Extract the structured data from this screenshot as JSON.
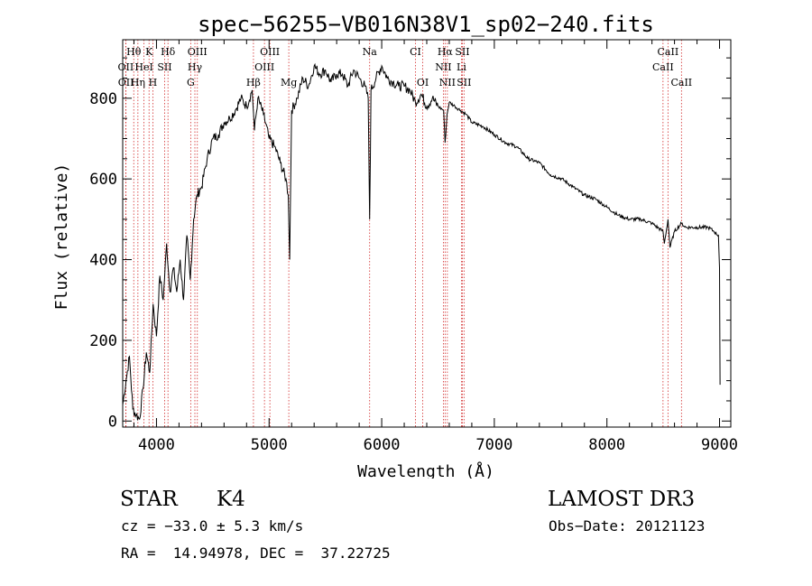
{
  "chart_data": {
    "type": "line",
    "title": "spec−56255−VB016N38V1_sp02−240.fits",
    "xlabel": "Wavelength (Å)",
    "ylabel": "Flux (relative)",
    "xlim": [
      3700,
      9100
    ],
    "ylim": [
      -15,
      945
    ],
    "x_ticks": [
      4000,
      5000,
      6000,
      7000,
      8000,
      9000
    ],
    "y_ticks": [
      0,
      200,
      400,
      600,
      800
    ],
    "series": [
      {
        "name": "spectrum",
        "x": [
          3700,
          3730,
          3760,
          3790,
          3820,
          3850,
          3880,
          3910,
          3940,
          3970,
          4000,
          4030,
          4060,
          4090,
          4120,
          4150,
          4180,
          4210,
          4240,
          4270,
          4300,
          4330,
          4360,
          4400,
          4450,
          4500,
          4550,
          4600,
          4650,
          4700,
          4750,
          4800,
          4850,
          4870,
          4900,
          4950,
          5000,
          5050,
          5100,
          5150,
          5170,
          5183,
          5200,
          5250,
          5300,
          5350,
          5400,
          5450,
          5500,
          5550,
          5600,
          5650,
          5700,
          5750,
          5800,
          5850,
          5880,
          5893,
          5905,
          5950,
          6000,
          6050,
          6100,
          6150,
          6200,
          6250,
          6300,
          6350,
          6400,
          6450,
          6500,
          6550,
          6563,
          6580,
          6600,
          6650,
          6700,
          6750,
          6800,
          6900,
          7000,
          7100,
          7200,
          7300,
          7400,
          7500,
          7600,
          7700,
          7800,
          7900,
          8000,
          8100,
          8200,
          8300,
          8400,
          8498,
          8510,
          8542,
          8560,
          8600,
          8662,
          8700,
          8800,
          8900,
          8950,
          8990,
          9000,
          9005
        ],
        "y": [
          40,
          100,
          160,
          30,
          15,
          5,
          80,
          170,
          120,
          290,
          210,
          360,
          300,
          440,
          320,
          380,
          320,
          400,
          300,
          460,
          350,
          500,
          560,
          580,
          650,
          700,
          710,
          740,
          750,
          770,
          800,
          780,
          820,
          720,
          800,
          760,
          700,
          680,
          640,
          600,
          560,
          400,
          770,
          800,
          850,
          830,
          880,
          860,
          870,
          840,
          860,
          860,
          830,
          870,
          850,
          830,
          800,
          500,
          820,
          850,
          880,
          850,
          840,
          830,
          830,
          820,
          790,
          810,
          780,
          800,
          780,
          770,
          690,
          760,
          790,
          780,
          770,
          760,
          740,
          730,
          710,
          690,
          680,
          650,
          640,
          610,
          600,
          580,
          560,
          550,
          530,
          510,
          500,
          500,
          490,
          470,
          440,
          500,
          430,
          470,
          490,
          480,
          480,
          480,
          470,
          460,
          380,
          90
        ]
      }
    ],
    "spectral_lines": [
      {
        "label": "Hθ",
        "wavelength": 3798,
        "row": 0
      },
      {
        "label": "K",
        "wavelength": 3934,
        "row": 0
      },
      {
        "label": "Hδ",
        "wavelength": 4102,
        "row": 0
      },
      {
        "label": "OIII",
        "wavelength": 4363,
        "row": 0
      },
      {
        "label": "OIII",
        "wavelength": 5007,
        "row": 0
      },
      {
        "label": "CI",
        "wavelength": 6300,
        "row": 0
      },
      {
        "label": "Hα",
        "wavelength": 6563,
        "row": 0
      },
      {
        "label": "SII",
        "wavelength": 6716,
        "row": 0
      },
      {
        "label": "CaII",
        "wavelength": 8542,
        "row": 0
      },
      {
        "label": "OII",
        "wavelength": 3727,
        "row": 1
      },
      {
        "label": "HeI",
        "wavelength": 3889,
        "row": 1
      },
      {
        "label": "SII",
        "wavelength": 4072,
        "row": 1
      },
      {
        "label": "Hγ",
        "wavelength": 4341,
        "row": 1
      },
      {
        "label": "OIII",
        "wavelength": 4959,
        "row": 1
      },
      {
        "label": "NII",
        "wavelength": 6548,
        "row": 1
      },
      {
        "label": "Li",
        "wavelength": 6708,
        "row": 1
      },
      {
        "label": "CaII",
        "wavelength": 8498,
        "row": 1
      },
      {
        "label": "OII",
        "wavelength": 3729,
        "row": 2
      },
      {
        "label": "Hη",
        "wavelength": 3835,
        "row": 2
      },
      {
        "label": "H",
        "wavelength": 3968,
        "row": 2
      },
      {
        "label": "G",
        "wavelength": 4304,
        "row": 2
      },
      {
        "label": "Hβ",
        "wavelength": 4861,
        "row": 2
      },
      {
        "label": "Mg",
        "wavelength": 5175,
        "row": 2
      },
      {
        "label": "Na",
        "wavelength": 5893,
        "row": 0
      },
      {
        "label": "OI",
        "wavelength": 6364,
        "row": 2
      },
      {
        "label": "NII",
        "wavelength": 6583,
        "row": 2
      },
      {
        "label": "SII",
        "wavelength": 6731,
        "row": 2
      },
      {
        "label": "CaII",
        "wavelength": 8662,
        "row": 2
      }
    ],
    "colors": {
      "line": "#000000",
      "marker": "#d22a2a",
      "axes": "#000000"
    }
  },
  "info": {
    "object_class": "STAR",
    "subclass": "K4",
    "cz": "cz = −33.0 ± 5.3 km/s",
    "coords": "RA =  14.94978, DEC =  37.22725",
    "survey": "LAMOST DR3",
    "obs_date": "Obs−Date: 20121123"
  }
}
